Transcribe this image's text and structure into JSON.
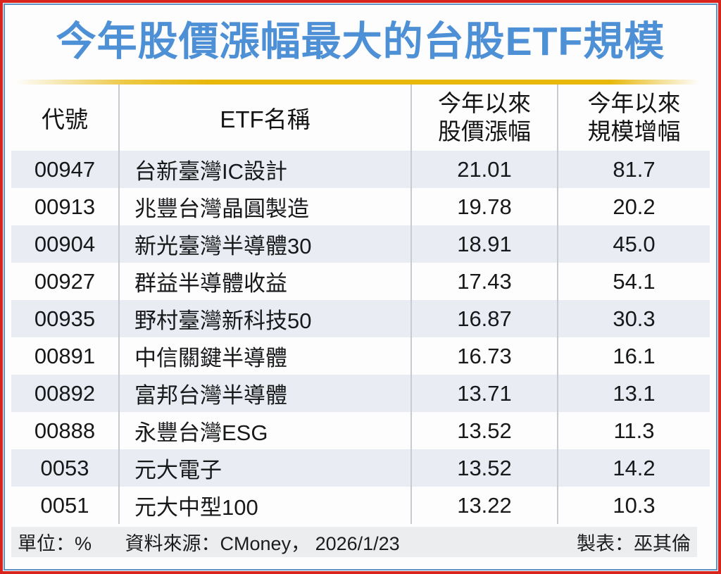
{
  "header": {
    "title": "今年股價漲幅最大的台股ETF規模"
  },
  "colors": {
    "border_red": "#d7251d",
    "border_blue": "#5e92c4",
    "title_blue": "#4e90d5",
    "gold": "#e7b70a",
    "stripe": "#e9ecf2",
    "footer_bg": "#ecedef"
  },
  "table": {
    "headers": [
      {
        "label": "代號"
      },
      {
        "label": "ETF名稱"
      },
      {
        "lines": [
          "今年以來",
          "股價漲幅"
        ]
      },
      {
        "lines": [
          "今年以來",
          "規模增幅"
        ]
      }
    ],
    "rows": [
      {
        "code": "00947",
        "name": "台新臺灣IC設計",
        "price_change": "21.01",
        "scale_change": "81.7"
      },
      {
        "code": "00913",
        "name": "兆豐台灣晶圓製造",
        "price_change": "19.78",
        "scale_change": "20.2"
      },
      {
        "code": "00904",
        "name": "新光臺灣半導體30",
        "price_change": "18.91",
        "scale_change": "45.0"
      },
      {
        "code": "00927",
        "name": "群益半導體收益",
        "price_change": "17.43",
        "scale_change": "54.1"
      },
      {
        "code": "00935",
        "name": "野村臺灣新科技50",
        "price_change": "16.87",
        "scale_change": "30.3"
      },
      {
        "code": "00891",
        "name": "中信關鍵半導體",
        "price_change": "16.73",
        "scale_change": "16.1"
      },
      {
        "code": "00892",
        "name": "富邦台灣半導體",
        "price_change": "13.71",
        "scale_change": "13.1"
      },
      {
        "code": "00888",
        "name": "永豐台灣ESG",
        "price_change": "13.52",
        "scale_change": "11.3"
      },
      {
        "code": "0053",
        "name": "元大電子",
        "price_change": "13.52",
        "scale_change": "14.2"
      },
      {
        "code": "0051",
        "name": "元大中型100",
        "price_change": "13.22",
        "scale_change": "10.3"
      }
    ]
  },
  "footer": {
    "unit": "單位：%",
    "source": "資料來源：CMoney， 2026/1/23",
    "credit": "製表：巫其倫"
  },
  "chart_data": {
    "type": "table",
    "title": "今年股價漲幅最大的台股ETF規模",
    "columns": [
      "代號",
      "ETF名稱",
      "今年以來股價漲幅",
      "今年以來規模增幅"
    ],
    "rows": [
      [
        "00947",
        "台新臺灣IC設計",
        21.01,
        81.7
      ],
      [
        "00913",
        "兆豐台灣晶圓製造",
        19.78,
        20.2
      ],
      [
        "00904",
        "新光臺灣半導體30",
        18.91,
        45.0
      ],
      [
        "00927",
        "群益半導體收益",
        17.43,
        54.1
      ],
      [
        "00935",
        "野村臺灣新科技50",
        16.87,
        30.3
      ],
      [
        "00891",
        "中信關鍵半導體",
        16.73,
        16.1
      ],
      [
        "00892",
        "富邦台灣半導體",
        13.71,
        13.1
      ],
      [
        "00888",
        "永豐台灣ESG",
        13.52,
        11.3
      ],
      [
        "0053",
        "元大電子",
        13.52,
        14.2
      ],
      [
        "0051",
        "元大中型100",
        13.22,
        10.3
      ]
    ],
    "unit": "%",
    "source": "CMoney",
    "date": "2026/1/23",
    "author": "巫其倫"
  }
}
